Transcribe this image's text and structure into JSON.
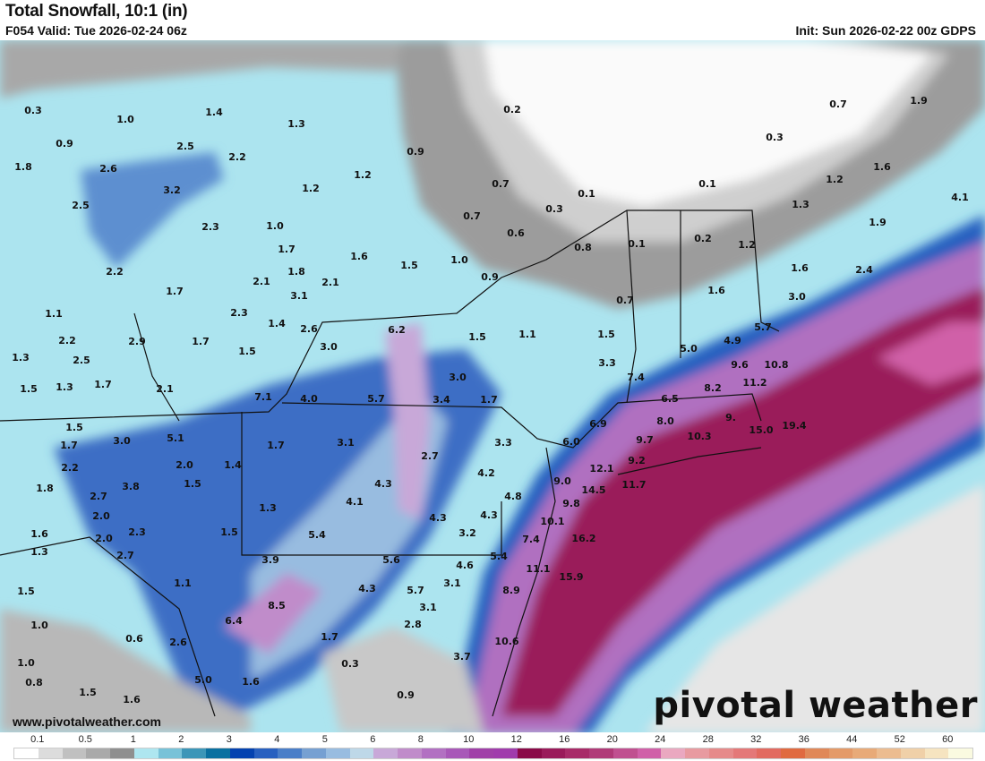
{
  "header": {
    "title": "Total Snowfall, 10:1 (in)",
    "valid": "F054 Valid: Tue 2026-02-24 06z",
    "init": "Init: Sun 2026-02-22 00z GDPS"
  },
  "footer": {
    "url": "www.pivotalweather.com",
    "logo": "pivotal weather"
  },
  "colorbar": {
    "labels": [
      "0.1",
      "0.5",
      "1",
      "2",
      "3",
      "4",
      "5",
      "6",
      "8",
      "10",
      "12",
      "16",
      "20",
      "24",
      "28",
      "32",
      "36",
      "44",
      "52",
      "60"
    ],
    "colors": [
      "#ffffff",
      "#dcdcdc",
      "#c0c0c0",
      "#a9a9a9",
      "#8f8f8f",
      "#aee6f0",
      "#78c2d8",
      "#3c96b8",
      "#0a70a0",
      "#0442b0",
      "#2860c0",
      "#4a7ec8",
      "#76a0d2",
      "#98bce0",
      "#bed8e8",
      "#c8a8d8",
      "#c08cca",
      "#b270c2",
      "#a858b8",
      "#a040a8",
      "#a03cac",
      "#8a0a48",
      "#9a1a5a",
      "#a82a68",
      "#b03a78",
      "#c05090",
      "#d060a8",
      "#eaa8c0",
      "#e89aa0",
      "#e68a8a",
      "#e47878",
      "#e26a60",
      "#e06a40",
      "#e08858",
      "#e49a68",
      "#e8aa78",
      "#ecbc90",
      "#f0d0a8",
      "#f6e4c0",
      "#fafae0"
    ]
  },
  "map": {
    "point_values": [
      "0.3",
      "1.0",
      "1.4",
      "1.3",
      "0.2",
      "0.7",
      "1.9",
      "0.9",
      "2.5",
      "2.2",
      "0.9",
      "0.3",
      "1.8",
      "2.6",
      "1.6",
      "3.2",
      "1.2",
      "1.2",
      "0.7",
      "0.1",
      "0.1",
      "1.2",
      "2.5",
      "1.3",
      "4.1",
      "2.3",
      "1.0",
      "0.7",
      "0.3",
      "0.6",
      "1.9",
      "1.7",
      "1.6",
      "0.8",
      "0.1",
      "0.2",
      "1.2",
      "2.2",
      "1.8",
      "1.5",
      "1.0",
      "0.9",
      "1.6",
      "2.4",
      "2.1",
      "2.1",
      "1.7",
      "3.1",
      "0.7",
      "1.6",
      "3.0",
      "2.3",
      "1.1",
      "1.4",
      "2.6",
      "6.2",
      "5.0",
      "4.9",
      "5.7",
      "2.2",
      "2.9",
      "1.7",
      "3.0",
      "1.5",
      "1.1",
      "1.5",
      "1.3",
      "2.5",
      "1.5",
      "3.3",
      "9.6",
      "10.8",
      "1.5",
      "1.3",
      "1.7",
      "2.1",
      "3.0",
      "7.4",
      "8.2",
      "11.2",
      "7.1",
      "4.0",
      "5.7",
      "3.4",
      "1.7",
      "6.5",
      "6.9",
      "8.0",
      "9.",
      "15.0",
      "19.4",
      "1.5",
      "3.0",
      "5.1",
      "1.7",
      "3.1",
      "3.3",
      "6.0",
      "9.7",
      "10.3",
      "1.7",
      "2.7",
      "9.2",
      "12.1",
      "2.2",
      "2.0",
      "1.4",
      "4.2",
      "9.0",
      "11.7",
      "1.8",
      "3.8",
      "1.5",
      "4.3",
      "14.5",
      "2.7",
      "4.1",
      "4.8",
      "9.8",
      "2.0",
      "1.3",
      "4.3",
      "4.3",
      "10.1",
      "1.6",
      "2.3",
      "1.5",
      "5.4",
      "3.2",
      "7.4",
      "16.2",
      "1.3",
      "2.0",
      "2.7",
      "3.9",
      "5.6",
      "4.6",
      "5.4",
      "11.1",
      "1.5",
      "1.1",
      "4.3",
      "5.7",
      "3.1",
      "15.9",
      "8.9",
      "8.5",
      "3.1",
      "1.0",
      "6.4",
      "2.8",
      "0.6",
      "2.6",
      "1.7",
      "10.6",
      "1.0",
      "0.3",
      "3.7",
      "0.8",
      "5.0",
      "1.6",
      "1.5",
      "1.6",
      "0.9"
    ]
  }
}
